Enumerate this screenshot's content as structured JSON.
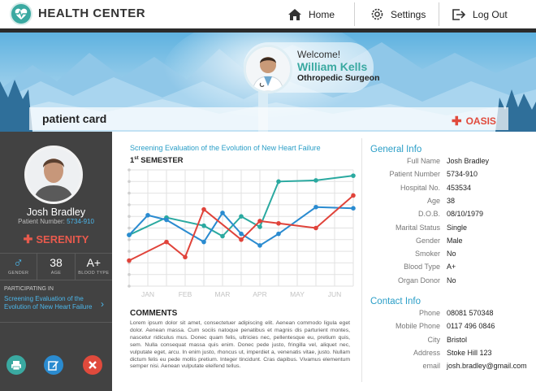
{
  "header": {
    "brand": "HEALTH CENTER",
    "nav": [
      {
        "label": "Home",
        "icon": "home-icon"
      },
      {
        "label": "Settings",
        "icon": "gear-icon"
      },
      {
        "label": "Log Out",
        "icon": "logout-icon"
      }
    ]
  },
  "banner": {
    "welcome": "Welcome!",
    "doctor_name": "William Kells",
    "doctor_title": "Othropedic Surgeon",
    "card_label": "patient card",
    "org": "OASIS"
  },
  "patient": {
    "name": "Josh Bradley",
    "number_label": "Patient Number:",
    "number": "5734-910",
    "plan": "SERENITY",
    "gender_label": "GENDER",
    "age": "38",
    "age_label": "AGE",
    "blood_type": "A+",
    "blood_label": "BLOOD TYPE",
    "participating_label": "PARTICIPATING IN",
    "study": "Screening Evaluation of the Evolution of New Heart Failure"
  },
  "chart_data": {
    "type": "line",
    "title": "Screening Evaluation of the Evolution of New Heart Failure",
    "subtitle_num": "1",
    "subtitle_sup": "st",
    "subtitle_rest": " SEMESTER",
    "categories": [
      "JAN",
      "FEB",
      "MAR",
      "APR",
      "MAY",
      "JUN"
    ],
    "x_positions": [
      0,
      0.5,
      1,
      1.5,
      2,
      2.5,
      3,
      3.5,
      4,
      4.5,
      5,
      5.5,
      6
    ],
    "ylim": [
      0,
      10
    ],
    "grid": true,
    "series": [
      {
        "color": "#2aa9a0",
        "points": [
          [
            0,
            4.4
          ],
          [
            1,
            5.9
          ],
          [
            2,
            5.2
          ],
          [
            2.5,
            4.3
          ],
          [
            3,
            6
          ],
          [
            3.5,
            5.1
          ],
          [
            4,
            9
          ],
          [
            5,
            9.1
          ],
          [
            6,
            9.5
          ]
        ]
      },
      {
        "color": "#2a8bd0",
        "points": [
          [
            0,
            4.4
          ],
          [
            0.5,
            6.1
          ],
          [
            1,
            5.7
          ],
          [
            2,
            3.8
          ],
          [
            2.5,
            6.3
          ],
          [
            3,
            4.5
          ],
          [
            3.5,
            3.5
          ],
          [
            4,
            4.5
          ],
          [
            5,
            6.8
          ],
          [
            6,
            6.7
          ]
        ]
      },
      {
        "color": "#e0433a",
        "points": [
          [
            0,
            2.2
          ],
          [
            1,
            3.8
          ],
          [
            1.5,
            2.5
          ],
          [
            2,
            6.6
          ],
          [
            3,
            4
          ],
          [
            3.5,
            5.6
          ],
          [
            4,
            5.4
          ],
          [
            5,
            5
          ],
          [
            6,
            7.8
          ]
        ]
      }
    ]
  },
  "comments": {
    "title": "COMMENTS",
    "body": "Lorem ipsum dolor sit amet, consectetuer adipiscing elit. Aenean commodo ligula eget dolor. Aenean massa. Cum sociis natoque penatibus et magnis dis parturient montes, nascetur ridiculus mus. Donec quam felis, ultricies nec, pellentesque eu, pretium quis, sem. Nulla consequat massa quis enim. Donec pede justo, fringilla vel, aliquet nec, vulputate eget, arcu. In enim justo, rhoncus ut, imperdiet a, venenatis vitae, justo. Nullam dictum felis eu pede mollis pretium. Integer tincidunt. Cras dapibus. Vivamus elementum semper nisi. Aenean vulputate eleifend tellus."
  },
  "general": {
    "title": "General Info",
    "rows": [
      {
        "label": "Full Name",
        "value": "Josh Bradley"
      },
      {
        "label": "Patient Number",
        "value": "5734-910"
      },
      {
        "label": "Hospital No.",
        "value": "453534"
      },
      {
        "label": "Age",
        "value": "38"
      },
      {
        "label": "D.O.B.",
        "value": "08/10/1979"
      },
      {
        "label": "Marital Status",
        "value": "Single"
      },
      {
        "label": "Gender",
        "value": "Male"
      },
      {
        "label": "Smoker",
        "value": "No"
      },
      {
        "label": "Blood Type",
        "value": "A+"
      },
      {
        "label": "Organ Donor",
        "value": "No"
      }
    ]
  },
  "contact": {
    "title": "Contact Info",
    "rows": [
      {
        "label": "Phone",
        "value": "08081 570348"
      },
      {
        "label": "Mobile Phone",
        "value": "0117 496 0846"
      },
      {
        "label": "City",
        "value": "Bristol"
      },
      {
        "label": "Address",
        "value": "Stoke Hill 123"
      },
      {
        "label": "email",
        "value": "josh.bradley@gmail.com"
      }
    ]
  },
  "colors": {
    "accent": "#3aa9a1",
    "link": "#2a9ec7",
    "danger": "#e04a3c",
    "sidebar": "#424242"
  }
}
